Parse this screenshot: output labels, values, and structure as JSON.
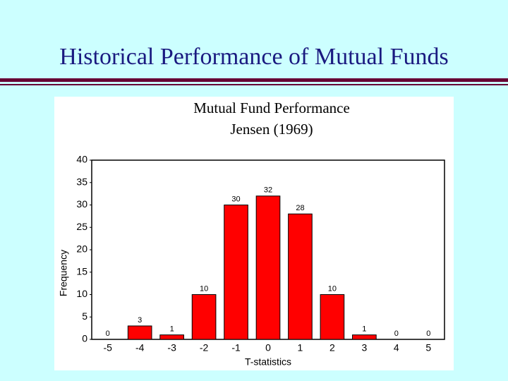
{
  "slide_title": "Historical Performance of Mutual Funds",
  "chart_data": {
    "type": "bar",
    "title": "Mutual Fund Performance",
    "subtitle": "Jensen (1969)",
    "x_label": "T-statistics",
    "y_label": "Frequency",
    "categories": [
      "-5",
      "-4",
      "-3",
      "-2",
      "-1",
      "0",
      "1",
      "2",
      "3",
      "4",
      "5"
    ],
    "values": [
      0,
      3,
      1,
      10,
      30,
      32,
      28,
      10,
      1,
      0,
      0
    ],
    "color": "#ff0000",
    "ylim": [
      0,
      40
    ],
    "yticks": [
      0,
      5,
      10,
      15,
      20,
      25,
      30,
      35,
      40
    ],
    "grid": false
  }
}
